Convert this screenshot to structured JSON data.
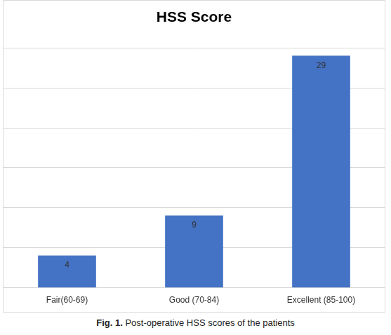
{
  "chart_data": {
    "type": "bar",
    "title": "HSS Score",
    "categories": [
      "Fair(60-69)",
      "Good (70-84)",
      "Excellent (85-100)"
    ],
    "values": [
      4,
      9,
      29
    ],
    "color": "#4472c4",
    "ylim": [
      0,
      30
    ],
    "yticks": [
      0,
      5,
      10,
      15,
      20,
      25,
      30
    ],
    "grid": true,
    "data_labels": true,
    "tick_labels": "x"
  },
  "caption": {
    "label": "Fig. 1.",
    "text": "Post-operative HSS scores of the patients"
  }
}
